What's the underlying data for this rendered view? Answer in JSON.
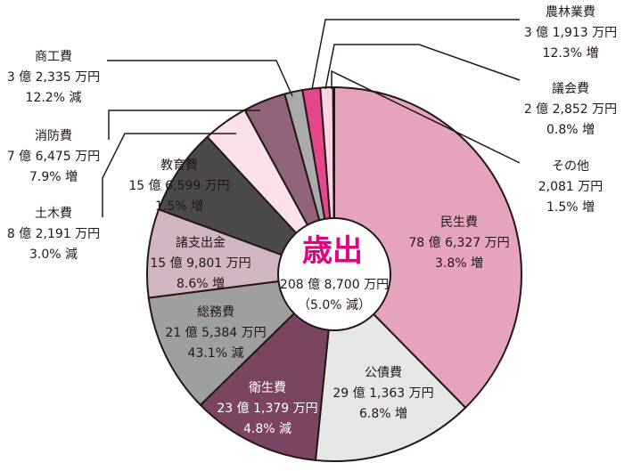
{
  "chart_data": {
    "type": "pie",
    "title": "歳出",
    "total_amount": "208 億 8,700 万円",
    "total_change": "（5.0% 減）",
    "slices": [
      {
        "name": "民生費",
        "value": 786327,
        "amount": "78 億 6,327 万円",
        "change": "3.8% 増",
        "color": "#e5a3c0",
        "text_color": "dark"
      },
      {
        "name": "公債費",
        "value": 291363,
        "amount": "29 億 1,363 万円",
        "change": "6.8% 増",
        "color": "#e6e6e6",
        "text_color": "dark"
      },
      {
        "name": "衛生費",
        "value": 231379,
        "amount": "23 億 1,379 万円",
        "change": "4.8% 減",
        "color": "#7b4460",
        "text_color": "light"
      },
      {
        "name": "総務費",
        "value": 215384,
        "amount": "21 億 5,384 万円",
        "change": "43.1% 減",
        "color": "#9f9f9f",
        "text_color": "dark"
      },
      {
        "name": "諸支出金",
        "value": 159801,
        "amount": "15 億 9,801 万円",
        "change": "8.6% 増",
        "color": "#d2b5c3",
        "text_color": "dark"
      },
      {
        "name": "教育費",
        "value": 156599,
        "amount": "15 億 6,599 万円",
        "change": "1.5% 増",
        "color": "#4a4a4a",
        "text_color": "dark"
      },
      {
        "name": "土木費",
        "value": 82191,
        "amount": "8 億 2,191 万円",
        "change": "3.0% 減",
        "color": "#fbe1ec",
        "text_color": "dark"
      },
      {
        "name": "消防費",
        "value": 76475,
        "amount": "7 億 6,475 万円",
        "change": "7.9% 増",
        "color": "#91647d",
        "text_color": "dark"
      },
      {
        "name": "商工費",
        "value": 32335,
        "amount": "3 億 2,335 万円",
        "change": "12.2% 減",
        "color": "#aaaaaa",
        "text_color": "dark"
      },
      {
        "name": "農林業費",
        "value": 31913,
        "amount": "3 億 1,913 万円",
        "change": "12.3% 増",
        "color": "#e4478d",
        "text_color": "dark"
      },
      {
        "name": "議会費",
        "value": 22852,
        "amount": "2 億 2,852 万円",
        "change": "0.8% 増",
        "color": "#f8d3e2",
        "text_color": "dark"
      },
      {
        "name": "その他",
        "value": 2081,
        "amount": "2,081 万円",
        "change": "1.5% 増",
        "color": "#231815",
        "text_color": "dark"
      }
    ],
    "legend": "none"
  }
}
